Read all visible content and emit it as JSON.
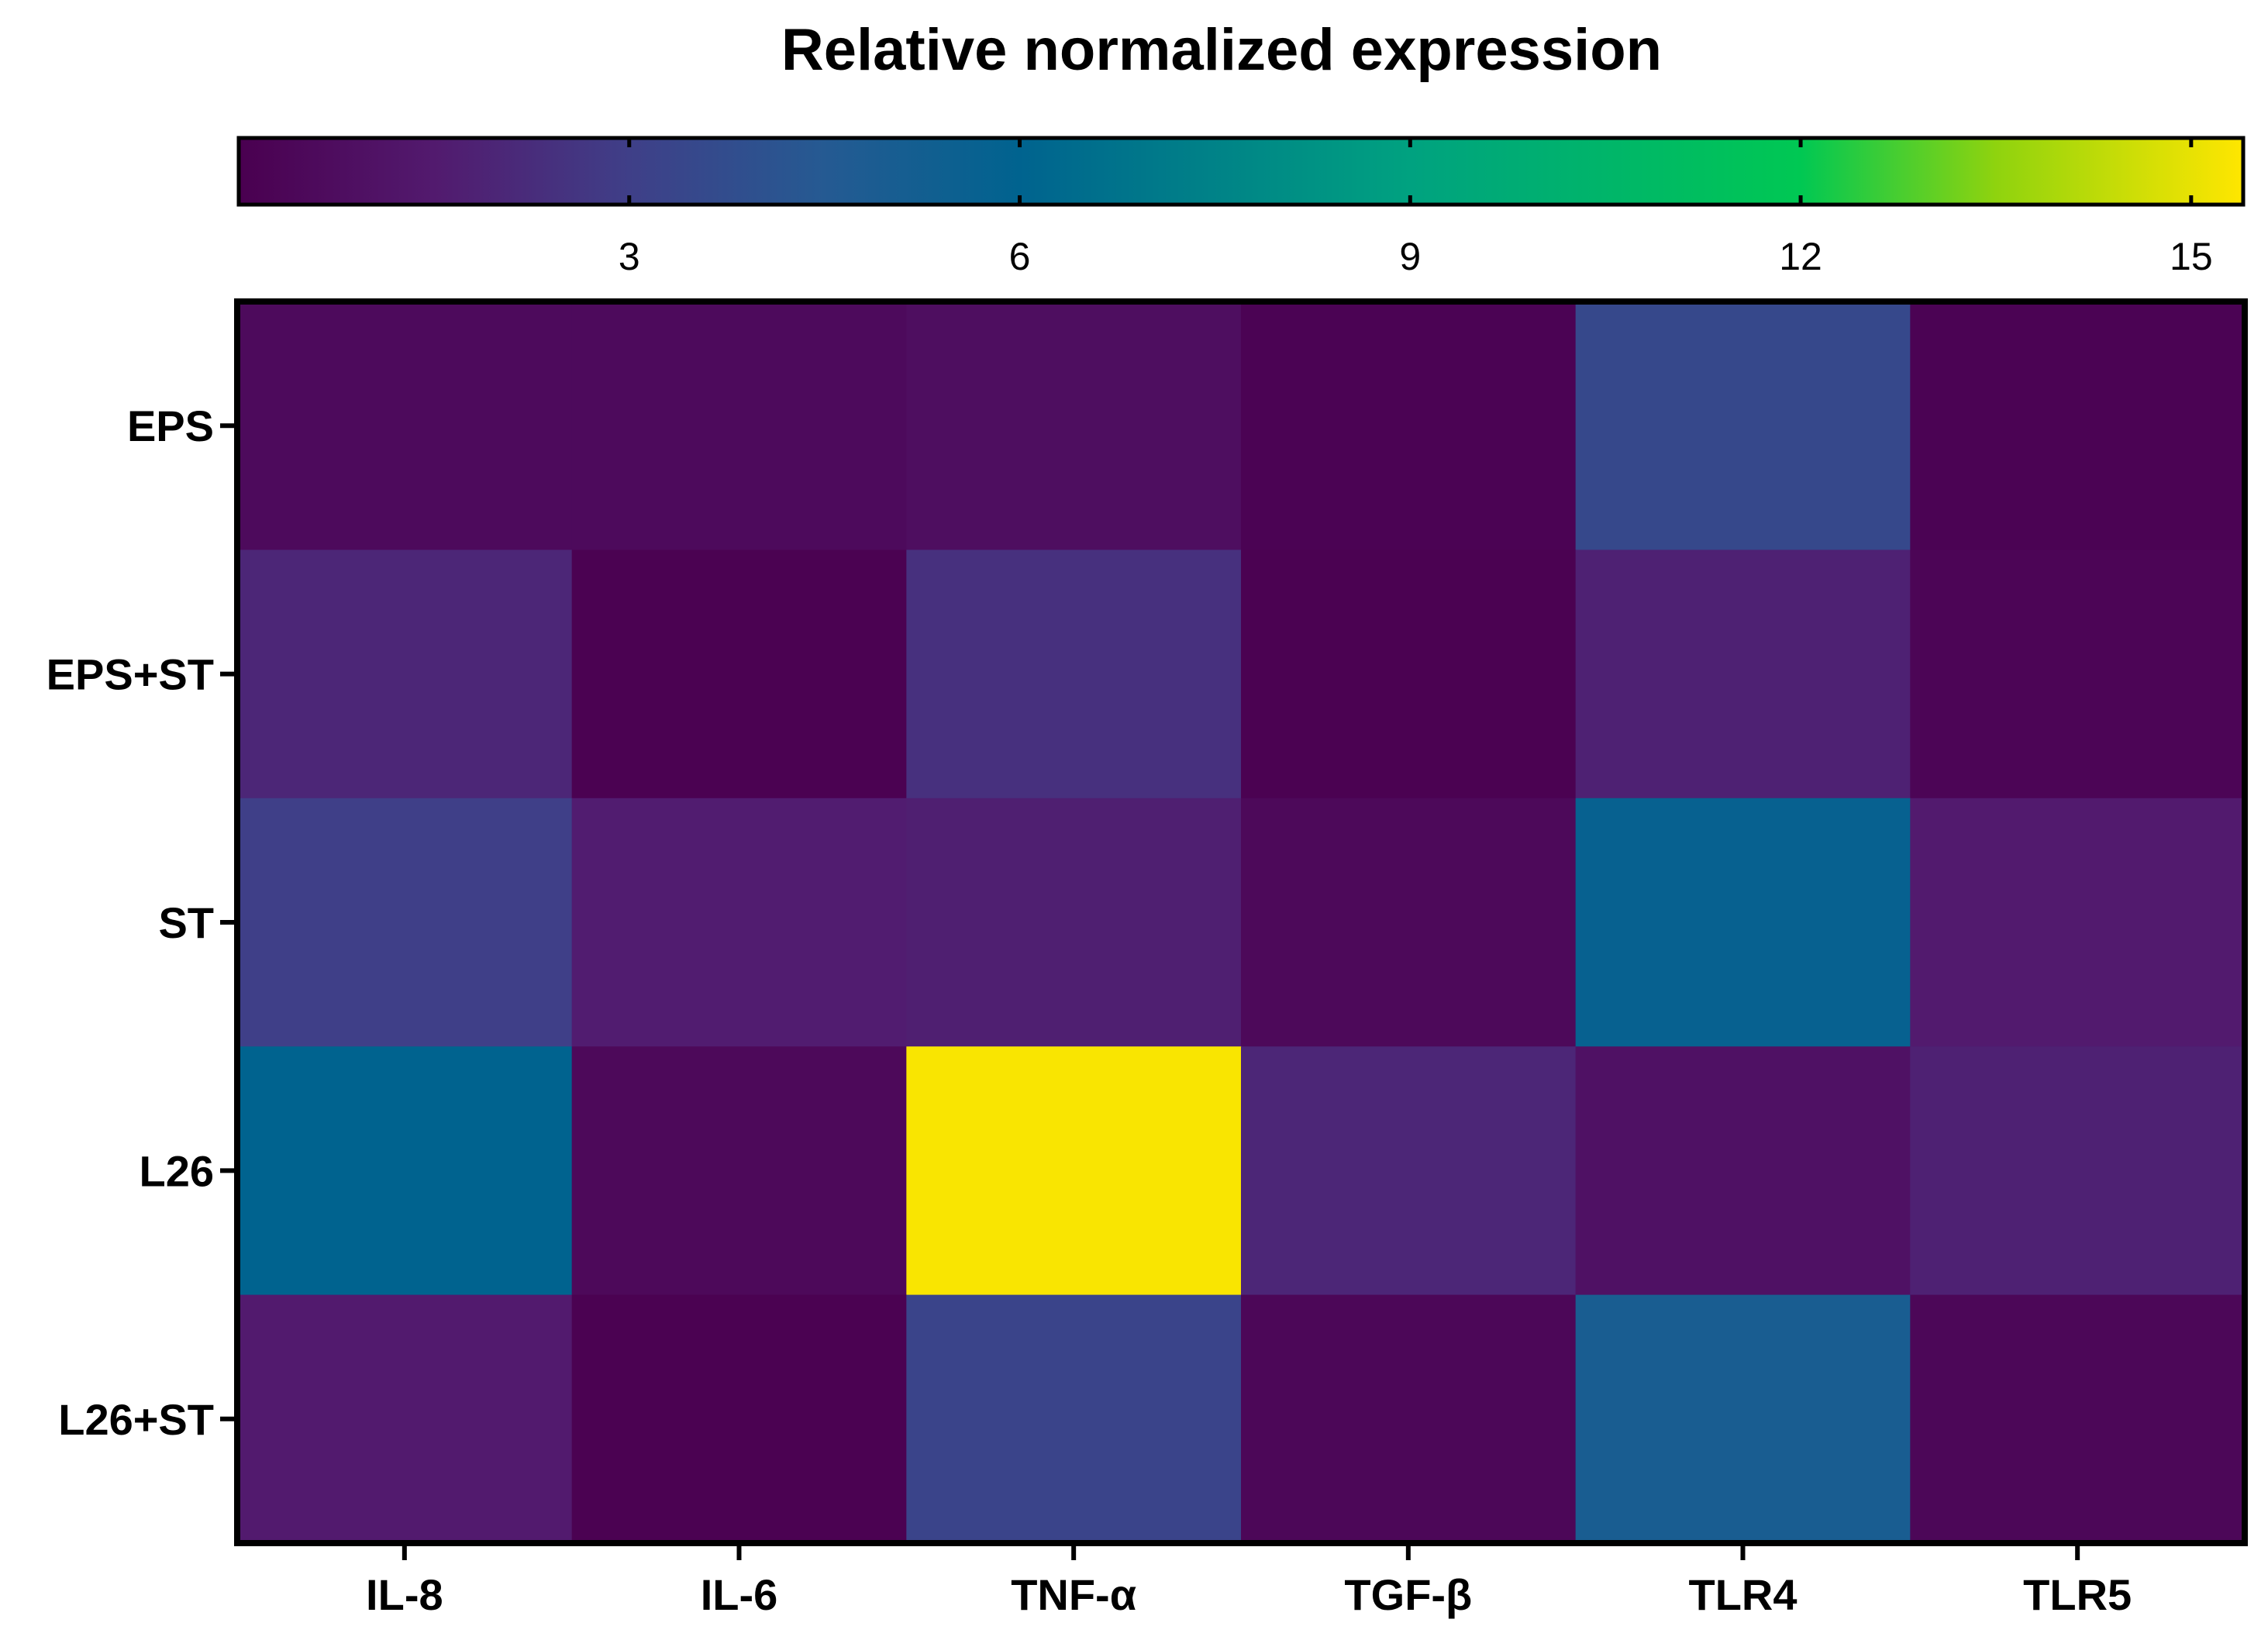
{
  "chart_data": {
    "type": "heatmap",
    "title": "Relative normalized expression",
    "rows": [
      "EPS",
      "EPS+ST",
      "ST",
      "L26",
      "L26+ST"
    ],
    "columns": [
      "IL-8",
      "IL-6",
      "TNF-α",
      "TGF-β",
      "TLR4",
      "TLR5"
    ],
    "values": [
      [
        0.6,
        0.6,
        0.8,
        0.2,
        3.5,
        0.2
      ],
      [
        2.0,
        0.1,
        2.4,
        0.1,
        1.8,
        0.3
      ],
      [
        3.0,
        1.6,
        1.7,
        0.5,
        5.7,
        1.5
      ],
      [
        6.0,
        0.5,
        15.3,
        2.0,
        1.0,
        1.8
      ],
      [
        1.5,
        0.1,
        3.3,
        0.4,
        5.0,
        0.4
      ]
    ],
    "colorbar": {
      "min": 0,
      "max": 15.4,
      "ticks": [
        3,
        6,
        9,
        12,
        15
      ],
      "tick_labels": [
        "3",
        "6",
        "9",
        "12",
        "15"
      ],
      "stops": [
        {
          "value": 0,
          "color": "#4a0050"
        },
        {
          "value": 1.5,
          "color": "#521a6e"
        },
        {
          "value": 3,
          "color": "#3f3f88"
        },
        {
          "value": 4.5,
          "color": "#255a92"
        },
        {
          "value": 6,
          "color": "#00638f"
        },
        {
          "value": 9,
          "color": "#00a280"
        },
        {
          "value": 12,
          "color": "#00c853"
        },
        {
          "value": 13.5,
          "color": "#8fd30e"
        },
        {
          "value": 15.4,
          "color": "#ffe600"
        }
      ]
    }
  }
}
